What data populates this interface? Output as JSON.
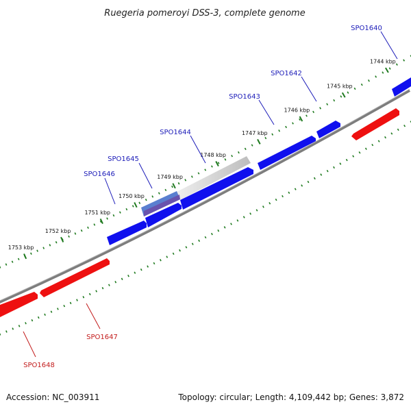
{
  "title": "Ruegeria pomeroyi DSS-3, complete genome",
  "footer": {
    "accession": "Accession: NC_003911",
    "summary": "Topology: circular; Length: 4,109,442 bp; Genes: 3,872"
  },
  "colors": {
    "forward_gene": "#0b0bf0",
    "reverse_gene": "#ee1010",
    "backbone": "#8a8a8a",
    "tick": "#1f7a1f",
    "highlight": "#c9c9c9",
    "forward_label": "#1a1ab8",
    "reverse_label": "#c21a1a"
  },
  "ticks": [
    {
      "label": "1744 kbp"
    },
    {
      "label": "1745 kbp"
    },
    {
      "label": "1746 kbp"
    },
    {
      "label": "1747 kbp"
    },
    {
      "label": "1748 kbp"
    },
    {
      "label": "1749 kbp"
    },
    {
      "label": "1750 kbp"
    },
    {
      "label": "1751 kbp"
    },
    {
      "label": "1752 kbp"
    },
    {
      "label": "1753 kbp"
    }
  ],
  "genes_forward": [
    {
      "label": "SPO1640"
    },
    {
      "label": "SPO1642"
    },
    {
      "label": "SPO1643"
    },
    {
      "label": "SPO1644"
    },
    {
      "label": "SPO1645"
    },
    {
      "label": "SPO1646"
    }
  ],
  "genes_reverse": [
    {
      "label": "SPO1647"
    },
    {
      "label": "SPO1648"
    }
  ]
}
